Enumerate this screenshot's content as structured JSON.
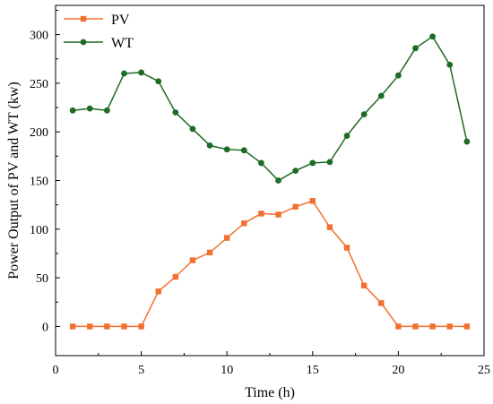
{
  "chart_data": {
    "type": "line",
    "xlabel": "Time (h)",
    "ylabel": "Power Output of PV and WT (kw)",
    "xlim": [
      0,
      25
    ],
    "ylim": [
      -30,
      330
    ],
    "xticks": [
      0,
      5,
      10,
      15,
      20,
      25
    ],
    "yticks": [
      0,
      50,
      100,
      150,
      200,
      250,
      300
    ],
    "grid": false,
    "legend_position": "top-left",
    "x": [
      1,
      2,
      3,
      4,
      5,
      6,
      7,
      8,
      9,
      10,
      11,
      12,
      13,
      14,
      15,
      16,
      17,
      18,
      19,
      20,
      21,
      22,
      23,
      24
    ],
    "series": [
      {
        "name": "PV",
        "color": "#f26f2f",
        "marker": "square",
        "values": [
          0,
          0,
          0,
          0,
          0,
          36,
          51,
          68,
          76,
          91,
          106,
          116,
          115,
          123,
          129,
          102,
          81,
          42,
          24,
          0,
          0,
          0,
          0,
          0
        ]
      },
      {
        "name": "WT",
        "color": "#1d6b24",
        "marker": "circle",
        "values": [
          222,
          224,
          222,
          260,
          261,
          252,
          220,
          203,
          186,
          182,
          181,
          168,
          150,
          160,
          168,
          169,
          196,
          218,
          237,
          258,
          286,
          298,
          269,
          190
        ]
      }
    ]
  }
}
